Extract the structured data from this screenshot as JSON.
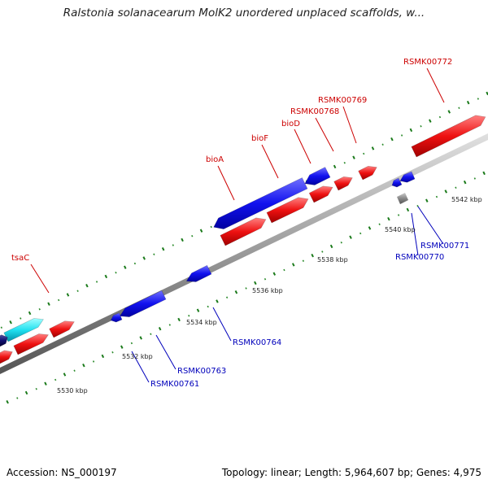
{
  "title": "Ralstonia solanacearum MolK2 unordered unplaced scaffolds, w...",
  "footer": {
    "accession": "Accession: NS_000197",
    "stats": "Topology: linear; Length: 5,964,607 bp; Genes: 4,975"
  },
  "colors": {
    "forward": "#ee1111",
    "reverse": "#1111ee",
    "rna": "#22e0f0",
    "pseudo": "#888888",
    "dark": "#101070",
    "backbone": "#999999",
    "tick_major": "#1a7a1a",
    "forward_label": "#cc0000",
    "reverse_label": "#0000bb"
  },
  "scale": {
    "ticks": [
      {
        "label": "5530 kbp"
      },
      {
        "label": "5532 kbp"
      },
      {
        "label": "5534 kbp"
      },
      {
        "label": "5536 kbp"
      },
      {
        "label": "5538 kbp"
      },
      {
        "label": "5540 kbp"
      },
      {
        "label": "5542 kbp"
      }
    ]
  },
  "forward_genes": [
    {
      "label": "tsaC"
    },
    {
      "label": "bioA"
    },
    {
      "label": "bioF"
    },
    {
      "label": "bioD"
    },
    {
      "label": "RSMK00768"
    },
    {
      "label": "RSMK00769"
    },
    {
      "label": "RSMK00772"
    }
  ],
  "reverse_genes": [
    {
      "label": "RSMK00761"
    },
    {
      "label": "RSMK00763"
    },
    {
      "label": "RSMK00764"
    },
    {
      "label": "RSMK00770"
    },
    {
      "label": "RSMK00771"
    }
  ]
}
